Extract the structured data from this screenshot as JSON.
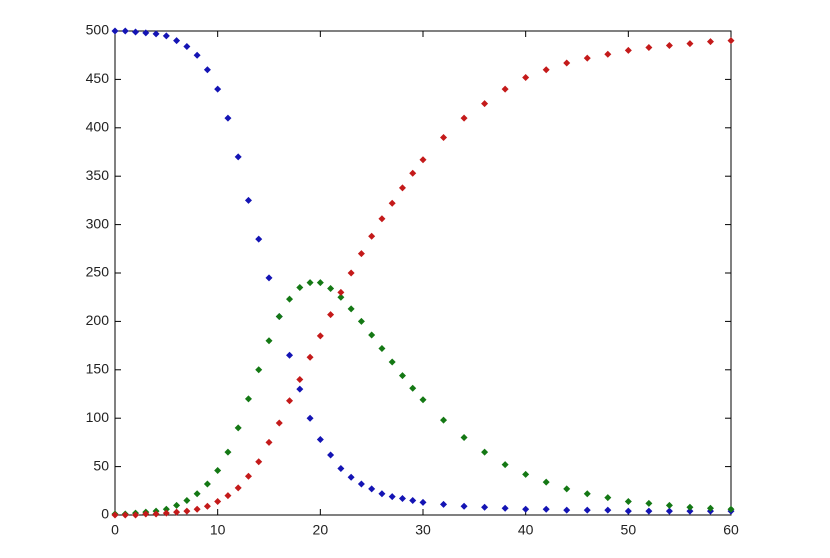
{
  "chart_data": {
    "type": "scatter",
    "x": [
      0,
      1,
      2,
      3,
      4,
      5,
      6,
      7,
      8,
      9,
      10,
      11,
      12,
      13,
      14,
      15,
      16,
      17,
      18,
      19,
      20,
      21,
      22,
      23,
      24,
      25,
      26,
      27,
      28,
      29,
      30,
      32,
      34,
      36,
      38,
      40,
      42,
      44,
      46,
      48,
      50,
      52,
      54,
      56,
      58,
      60
    ],
    "series": [
      {
        "color": "#1414b4",
        "values": [
          500,
          500,
          499,
          498,
          497,
          495,
          490,
          484,
          475,
          460,
          440,
          410,
          370,
          325,
          285,
          245,
          205,
          165,
          130,
          100,
          78,
          62,
          48,
          39,
          32,
          27,
          22,
          19,
          17,
          15,
          13,
          11,
          9,
          8,
          7,
          6,
          6,
          5,
          5,
          5,
          4,
          4,
          4,
          4,
          4,
          4
        ]
      },
      {
        "color": "#147814",
        "values": [
          1,
          1,
          2,
          3,
          4,
          6,
          10,
          15,
          22,
          32,
          46,
          65,
          90,
          120,
          150,
          180,
          205,
          223,
          235,
          240,
          240,
          234,
          225,
          213,
          200,
          186,
          172,
          158,
          144,
          131,
          119,
          98,
          80,
          65,
          52,
          42,
          34,
          27,
          22,
          18,
          14,
          12,
          10,
          8,
          7,
          6
        ]
      },
      {
        "color": "#c41a1a",
        "values": [
          0,
          0,
          0,
          1,
          1,
          2,
          3,
          4,
          6,
          9,
          14,
          20,
          28,
          40,
          55,
          75,
          95,
          118,
          140,
          163,
          185,
          207,
          230,
          250,
          270,
          288,
          306,
          322,
          338,
          353,
          367,
          390,
          410,
          425,
          440,
          452,
          460,
          467,
          472,
          476,
          480,
          483,
          485,
          487,
          489,
          490
        ]
      }
    ],
    "xlim": [
      0,
      60
    ],
    "xticks": [
      0,
      10,
      20,
      30,
      40,
      50,
      60
    ],
    "ylim": [
      0,
      500
    ],
    "yticks": [
      0,
      50,
      100,
      150,
      200,
      250,
      300,
      350,
      400,
      450,
      500
    ],
    "grid": false
  }
}
